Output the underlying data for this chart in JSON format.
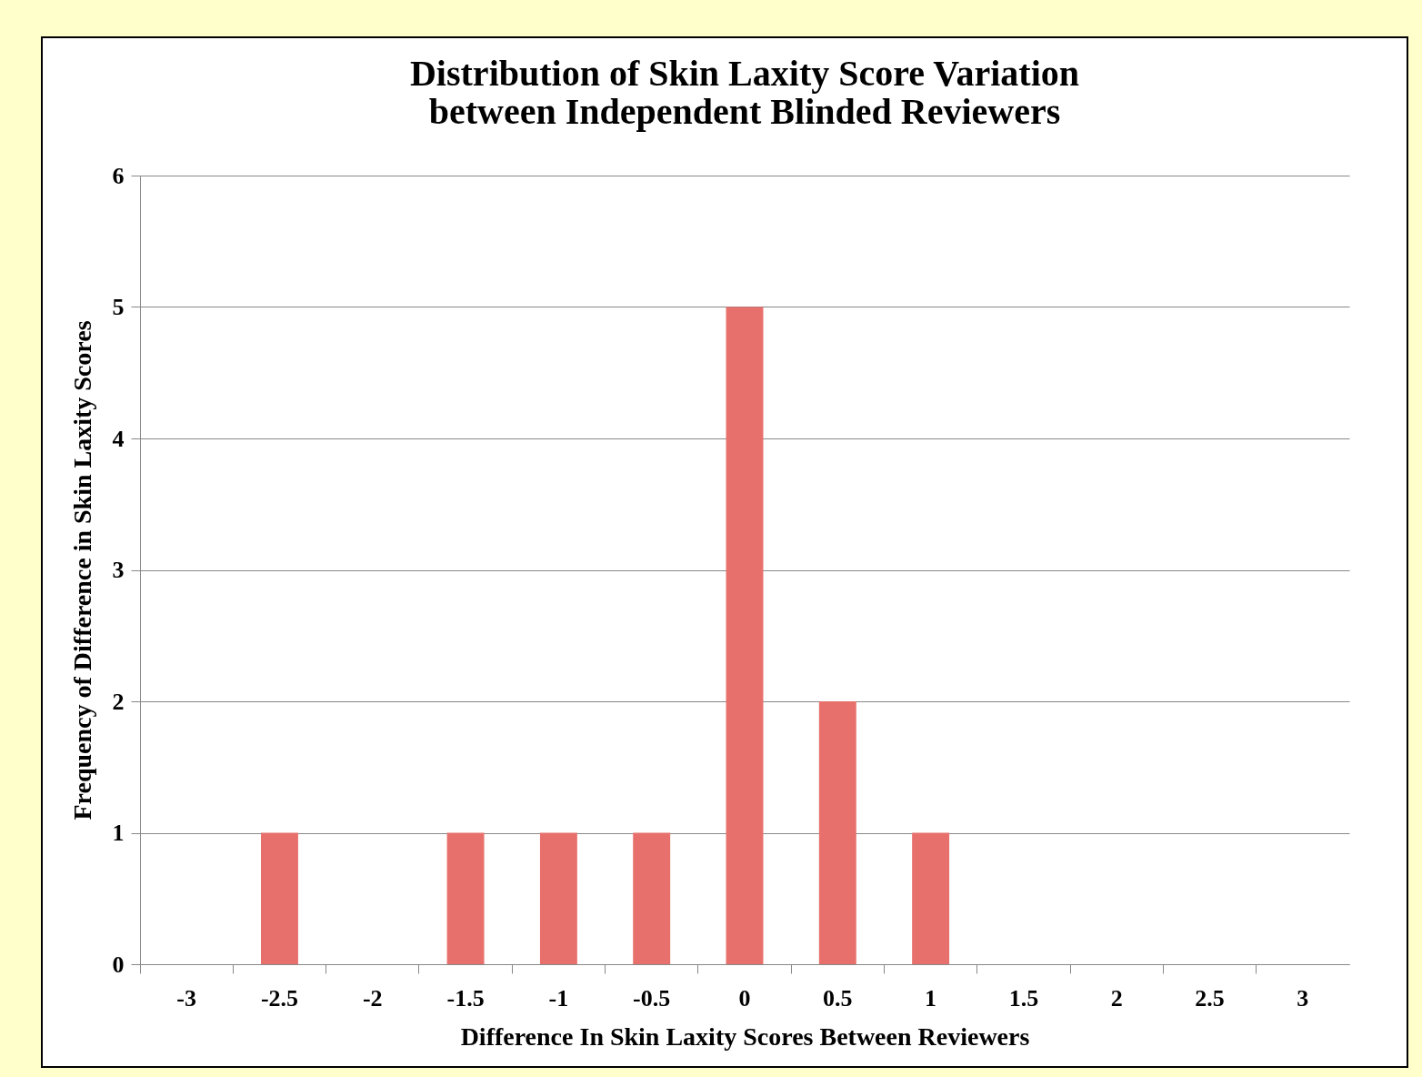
{
  "chart_data": {
    "type": "bar",
    "title": "Distribution of Skin Laxity Score Variation between Independent Blinded Reviewers",
    "xlabel": "Difference In Skin Laxity Scores Between Reviewers",
    "ylabel": "Frequency of Difference in Skin Laxity Scores",
    "categories": [
      "-3",
      "-2.5",
      "-2",
      "-1.5",
      "-1",
      "-0.5",
      "0",
      "0.5",
      "1",
      "1.5",
      "2",
      "2.5",
      "3"
    ],
    "values": [
      0,
      1,
      0,
      1,
      1,
      1,
      5,
      2,
      1,
      0,
      0,
      0,
      0
    ],
    "color": "#e8706c",
    "ylim": [
      0,
      6
    ],
    "yticks": [
      0,
      1,
      2,
      3,
      4,
      5,
      6
    ],
    "grid": "y"
  }
}
